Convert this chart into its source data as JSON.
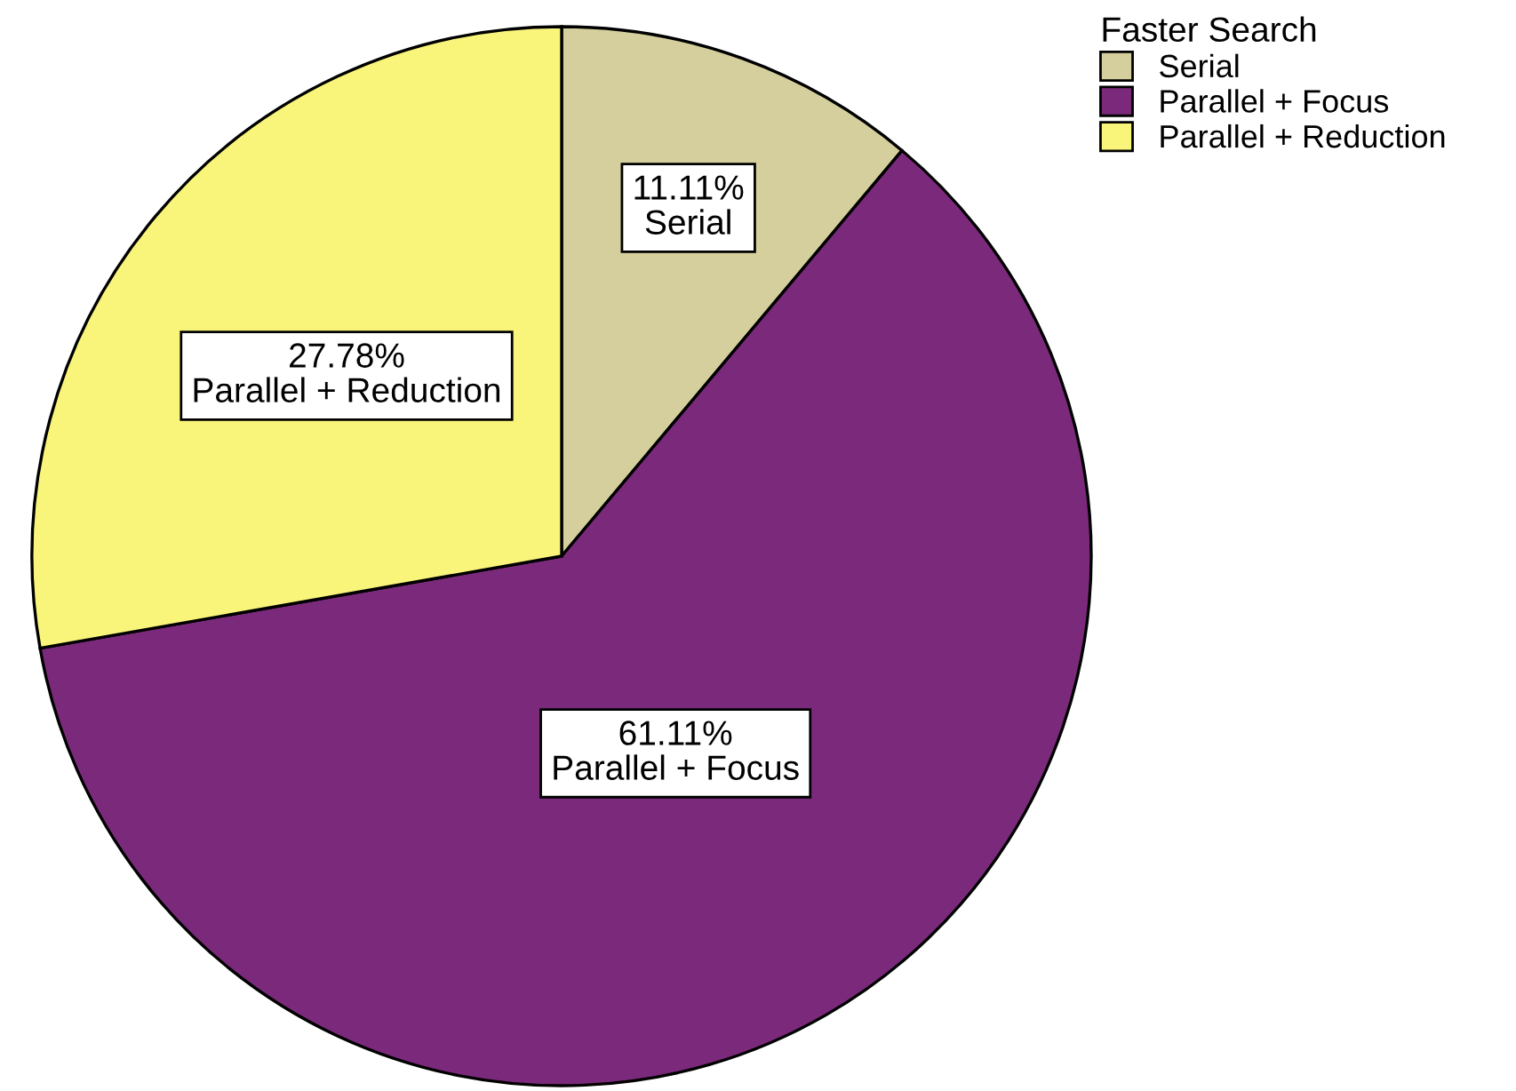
{
  "chart_data": {
    "type": "pie",
    "categories": [
      "Serial",
      "Parallel + Focus",
      "Parallel + Reduction"
    ],
    "values": [
      11.11,
      61.11,
      27.78
    ],
    "colors": [
      "#d4cf9c",
      "#7b2a7b",
      "#f9f57b"
    ],
    "value_labels": [
      "11.11%",
      "61.11%",
      "27.78%"
    ],
    "legend_title": "Faster Search",
    "legend": "top right"
  }
}
